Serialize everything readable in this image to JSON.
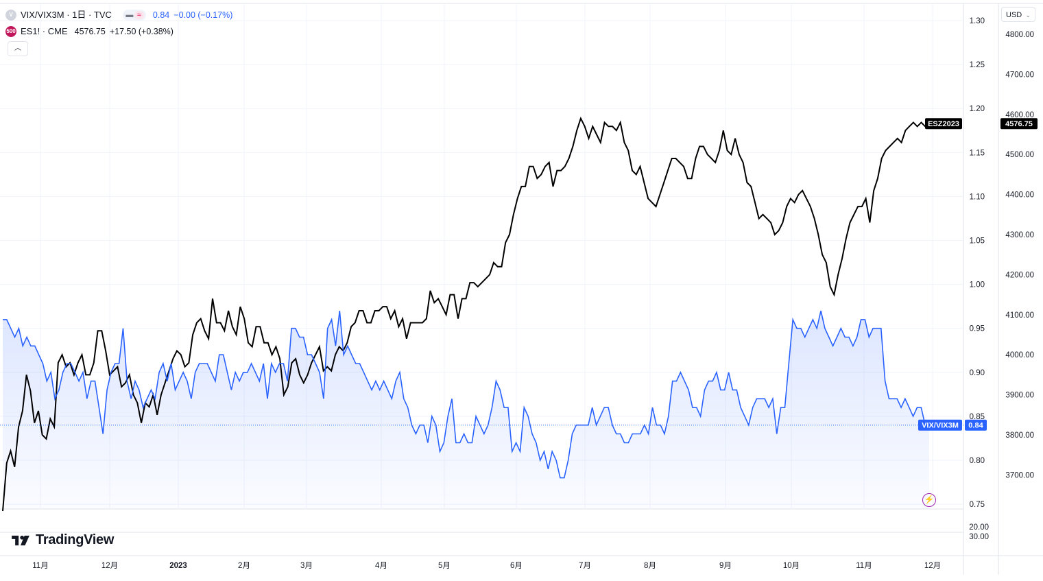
{
  "legend": {
    "main": {
      "symbol": "VIX/VIX3M · 1日 · TVC",
      "value": "0.84",
      "change": "−0.00 (−0.17%)"
    },
    "compare": {
      "symbol": "ES1! · CME",
      "value": "4576.75",
      "change": "+17.50 (+0.38%)",
      "logo_text": "500"
    },
    "collapse_icon": "chevron-up-icon"
  },
  "currency": "USD",
  "brand": "TradingView",
  "colors": {
    "vix_line": "#2962ff",
    "es_line": "#000000",
    "vix_fill_top": "#dbe4fb",
    "grid": "#f0f3fa"
  },
  "chart_data": {
    "type": "line",
    "x_labels": [
      "11月",
      "12月",
      "2023",
      "2月",
      "3月",
      "4月",
      "5月",
      "6月",
      "7月",
      "8月",
      "9月",
      "10月",
      "11月",
      "12月"
    ],
    "left_series_name": "VIX/VIX3M",
    "right_series_name": "ESZ2023",
    "right_axis": {
      "ticks": [
        "1.30",
        "1.25",
        "1.20",
        "1.15",
        "1.10",
        "1.05",
        "1.00",
        "0.95",
        "0.90",
        "0.85",
        "0.80",
        "0.75"
      ],
      "range": [
        0.75,
        1.3
      ],
      "last_label": "VIX/VIX3M",
      "last_value": "0.84"
    },
    "far_right_axis": {
      "ticks": [
        "4800.00",
        "4700.00",
        "4600.00",
        "4500.00",
        "4400.00",
        "4300.00",
        "4200.00",
        "4100.00",
        "4000.00",
        "3900.00",
        "3800.00",
        "3700.00"
      ],
      "range": [
        3700,
        4800
      ],
      "last_label": "ESZ2023",
      "last_value": "4576.75"
    },
    "volume_axis_ticks": [
      "20.00",
      "30.00"
    ],
    "series": [
      {
        "name": "VIX/VIX3M",
        "values": [
          0.96,
          0.96,
          0.95,
          0.94,
          0.95,
          0.93,
          0.94,
          0.93,
          0.93,
          0.92,
          0.91,
          0.89,
          0.9,
          0.87,
          0.88,
          0.9,
          0.91,
          0.91,
          0.9,
          0.89,
          0.9,
          0.87,
          0.89,
          0.89,
          0.86,
          0.83,
          0.88,
          0.9,
          0.91,
          0.91,
          0.95,
          0.89,
          0.87,
          0.89,
          0.88,
          0.86,
          0.87,
          0.88,
          0.87,
          0.9,
          0.91,
          0.89,
          0.91,
          0.88,
          0.89,
          0.9,
          0.89,
          0.87,
          0.9,
          0.91,
          0.91,
          0.91,
          0.9,
          0.89,
          0.92,
          0.92,
          0.9,
          0.88,
          0.9,
          0.89,
          0.9,
          0.9,
          0.91,
          0.9,
          0.89,
          0.91,
          0.87,
          0.91,
          0.9,
          0.91,
          0.91,
          0.89,
          0.95,
          0.95,
          0.94,
          0.94,
          0.92,
          0.92,
          0.91,
          0.9,
          0.87,
          0.95,
          0.96,
          0.93,
          0.97,
          0.92,
          0.93,
          0.92,
          0.91,
          0.91,
          0.9,
          0.89,
          0.88,
          0.89,
          0.88,
          0.89,
          0.88,
          0.87,
          0.89,
          0.9,
          0.87,
          0.86,
          0.84,
          0.83,
          0.84,
          0.84,
          0.82,
          0.85,
          0.84,
          0.81,
          0.82,
          0.85,
          0.87,
          0.82,
          0.82,
          0.83,
          0.82,
          0.82,
          0.85,
          0.84,
          0.83,
          0.84,
          0.86,
          0.89,
          0.88,
          0.86,
          0.86,
          0.81,
          0.82,
          0.81,
          0.86,
          0.85,
          0.83,
          0.82,
          0.8,
          0.81,
          0.79,
          0.81,
          0.8,
          0.78,
          0.78,
          0.8,
          0.83,
          0.84,
          0.84,
          0.84,
          0.84,
          0.86,
          0.84,
          0.85,
          0.86,
          0.86,
          0.84,
          0.83,
          0.83,
          0.82,
          0.82,
          0.83,
          0.83,
          0.83,
          0.84,
          0.83,
          0.86,
          0.84,
          0.84,
          0.83,
          0.85,
          0.89,
          0.89,
          0.9,
          0.89,
          0.88,
          0.86,
          0.86,
          0.85,
          0.88,
          0.89,
          0.89,
          0.9,
          0.88,
          0.88,
          0.9,
          0.88,
          0.88,
          0.86,
          0.85,
          0.84,
          0.86,
          0.87,
          0.87,
          0.87,
          0.86,
          0.87,
          0.83,
          0.86,
          0.86,
          0.91,
          0.96,
          0.95,
          0.95,
          0.94,
          0.95,
          0.96,
          0.95,
          0.97,
          0.95,
          0.94,
          0.93,
          0.94,
          0.95,
          0.94,
          0.94,
          0.93,
          0.94,
          0.96,
          0.96,
          0.94,
          0.95,
          0.95,
          0.95,
          0.89,
          0.87,
          0.87,
          0.87,
          0.86,
          0.87,
          0.86,
          0.85,
          0.86,
          0.86,
          0.84,
          0.84
        ]
      },
      {
        "name": "ESZ2023",
        "values": [
          3610,
          3730,
          3760,
          3720,
          3820,
          3860,
          3950,
          3910,
          3830,
          3860,
          3800,
          3790,
          3840,
          3820,
          3980,
          4000,
          3970,
          3980,
          3950,
          3980,
          4000,
          3950,
          3950,
          3980,
          4060,
          4060,
          4010,
          3950,
          3960,
          3970,
          3920,
          3930,
          3950,
          3900,
          3880,
          3830,
          3880,
          3870,
          3900,
          3850,
          3900,
          3930,
          3960,
          3990,
          4010,
          4000,
          3970,
          3980,
          4050,
          4080,
          4090,
          4060,
          4040,
          4140,
          4080,
          4080,
          4060,
          4110,
          4070,
          4050,
          4120,
          4090,
          4030,
          4020,
          4070,
          4070,
          4030,
          4030,
          4000,
          4020,
          3990,
          3900,
          3920,
          3980,
          3990,
          3950,
          3930,
          3950,
          3980,
          4000,
          4020,
          3960,
          3970,
          3960,
          4000,
          4020,
          4010,
          4030,
          4070,
          4080,
          4110,
          4110,
          4080,
          4080,
          4110,
          4110,
          4120,
          4120,
          4090,
          4110,
          4070,
          4090,
          4040,
          4080,
          4080,
          4080,
          4080,
          4090,
          4160,
          4130,
          4140,
          4120,
          4100,
          4150,
          4150,
          4090,
          4140,
          4140,
          4180,
          4180,
          4170,
          4180,
          4190,
          4200,
          4230,
          4220,
          4220,
          4280,
          4300,
          4350,
          4390,
          4420,
          4420,
          4470,
          4470,
          4440,
          4450,
          4470,
          4480,
          4420,
          4460,
          4460,
          4470,
          4490,
          4520,
          4560,
          4590,
          4570,
          4540,
          4570,
          4550,
          4530,
          4580,
          4570,
          4570,
          4560,
          4580,
          4530,
          4510,
          4460,
          4450,
          4470,
          4430,
          4390,
          4380,
          4370,
          4400,
          4430,
          4460,
          4490,
          4490,
          4480,
          4470,
          4440,
          4440,
          4490,
          4520,
          4520,
          4500,
          4490,
          4480,
          4510,
          4560,
          4510,
          4500,
          4540,
          4500,
          4480,
          4430,
          4420,
          4380,
          4340,
          4350,
          4340,
          4330,
          4300,
          4310,
          4330,
          4370,
          4390,
          4380,
          4400,
          4410,
          4390,
          4370,
          4340,
          4300,
          4250,
          4230,
          4170,
          4150,
          4200,
          4240,
          4290,
          4330,
          4350,
          4370,
          4370,
          4390,
          4330,
          4410,
          4440,
          4490,
          4510,
          4520,
          4530,
          4540,
          4530,
          4560,
          4570,
          4580,
          4570,
          4580,
          4570,
          4577
        ]
      }
    ]
  }
}
